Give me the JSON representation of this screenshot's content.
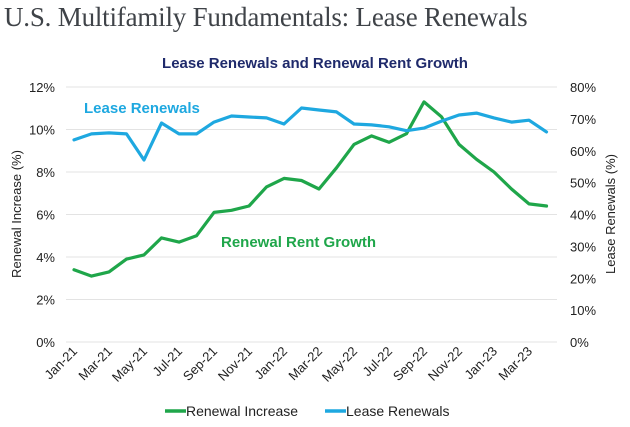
{
  "page_title": "U.S. Multifamily Fundamentals: Lease Renewals",
  "chart_data": {
    "type": "line",
    "title": "Lease Renewals and Renewal Rent Growth",
    "xlabel": "",
    "ylabel": "Renewal Increase (%)",
    "y2label": "Lease Renewals (%)",
    "ylim": [
      0,
      12
    ],
    "y2lim": [
      0,
      80
    ],
    "y_ticks": [
      "0%",
      "2%",
      "4%",
      "6%",
      "8%",
      "10%",
      "12%"
    ],
    "y2_ticks": [
      "0%",
      "10%",
      "20%",
      "30%",
      "40%",
      "50%",
      "60%",
      "70%",
      "80%"
    ],
    "grid": true,
    "legend_position": "bottom",
    "x": [
      "Jan-21",
      "Feb-21",
      "Mar-21",
      "Apr-21",
      "May-21",
      "Jun-21",
      "Jul-21",
      "Aug-21",
      "Sep-21",
      "Oct-21",
      "Nov-21",
      "Dec-21",
      "Jan-22",
      "Feb-22",
      "Mar-22",
      "Apr-22",
      "May-22",
      "Jun-22",
      "Jul-22",
      "Aug-22",
      "Sep-22",
      "Oct-22",
      "Nov-22",
      "Dec-22",
      "Jan-23",
      "Feb-23",
      "Mar-23",
      "Apr-23"
    ],
    "x_tick_labels": [
      "Jan-21",
      "Mar-21",
      "May-21",
      "Jul-21",
      "Sep-21",
      "Nov-21",
      "Jan-22",
      "Mar-22",
      "May-22",
      "Jul-22",
      "Sep-22",
      "Nov-22",
      "Jan-23",
      "Mar-23"
    ],
    "series": [
      {
        "name": "Renewal Increase",
        "axis": "left",
        "color": "#1fa64a",
        "annotation": "Renewal Rent Growth",
        "values": [
          3.4,
          3.1,
          3.3,
          3.9,
          4.1,
          4.9,
          4.7,
          5.0,
          6.1,
          6.2,
          6.4,
          7.3,
          7.7,
          7.6,
          7.2,
          8.2,
          9.3,
          9.7,
          9.4,
          9.8,
          11.3,
          10.6,
          9.3,
          8.6,
          8.0,
          7.2,
          6.5,
          6.4
        ]
      },
      {
        "name": "Lease Renewals",
        "axis": "right",
        "color": "#1ea8e0",
        "annotation": "Lease Renewals",
        "values": [
          63.4,
          65.3,
          65.6,
          65.3,
          57.1,
          68.7,
          65.3,
          65.3,
          69.0,
          70.9,
          70.6,
          70.3,
          68.4,
          73.4,
          72.8,
          72.2,
          68.4,
          68.1,
          67.5,
          66.3,
          67.1,
          69.3,
          71.2,
          71.8,
          70.3,
          69.0,
          69.6,
          65.9
        ]
      }
    ]
  }
}
